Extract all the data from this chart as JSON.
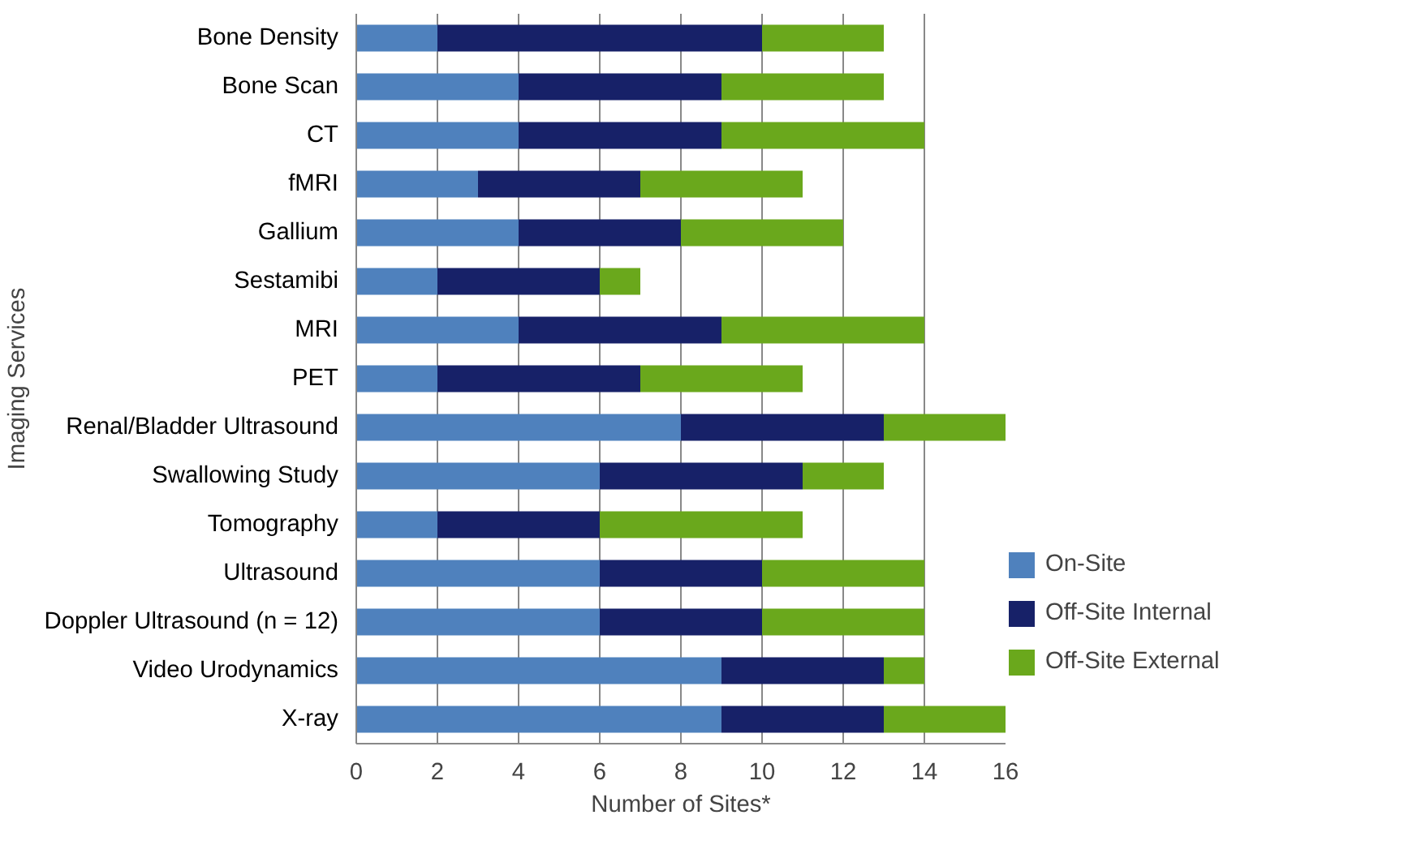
{
  "chart_data": {
    "type": "bar",
    "orientation": "horizontal",
    "stacked": true,
    "xlabel": "Number of Sites*",
    "ylabel": "Imaging Services",
    "categories": [
      "Bone Density",
      "Bone Scan",
      "CT",
      "fMRI",
      "Gallium",
      "Sestamibi",
      "MRI",
      "PET",
      "Renal/Bladder Ultrasound",
      "Swallowing Study",
      "Tomography",
      "Ultrasound",
      "Doppler Ultrasound (n = 12)",
      "Video Urodynamics",
      "X-ray"
    ],
    "series": [
      {
        "name": "On-Site",
        "color": "#4f81bd",
        "values": [
          2,
          4,
          4,
          3,
          4,
          2,
          4,
          2,
          8,
          6,
          2,
          6,
          6,
          9,
          9
        ]
      },
      {
        "name": "Off-Site Internal",
        "color": "#172168",
        "values": [
          8,
          5,
          5,
          4,
          4,
          4,
          5,
          5,
          5,
          5,
          4,
          4,
          4,
          4,
          4
        ]
      },
      {
        "name": "Off-Site External",
        "color": "#6aa81c",
        "values": [
          3,
          4,
          5,
          4,
          4,
          1,
          5,
          4,
          3,
          2,
          5,
          4,
          4,
          1,
          3
        ]
      }
    ],
    "xlim": [
      0,
      16
    ],
    "xticks": [
      0,
      2,
      4,
      6,
      8,
      10,
      12,
      14,
      16
    ],
    "grid": "x",
    "legend": "bottom right"
  }
}
